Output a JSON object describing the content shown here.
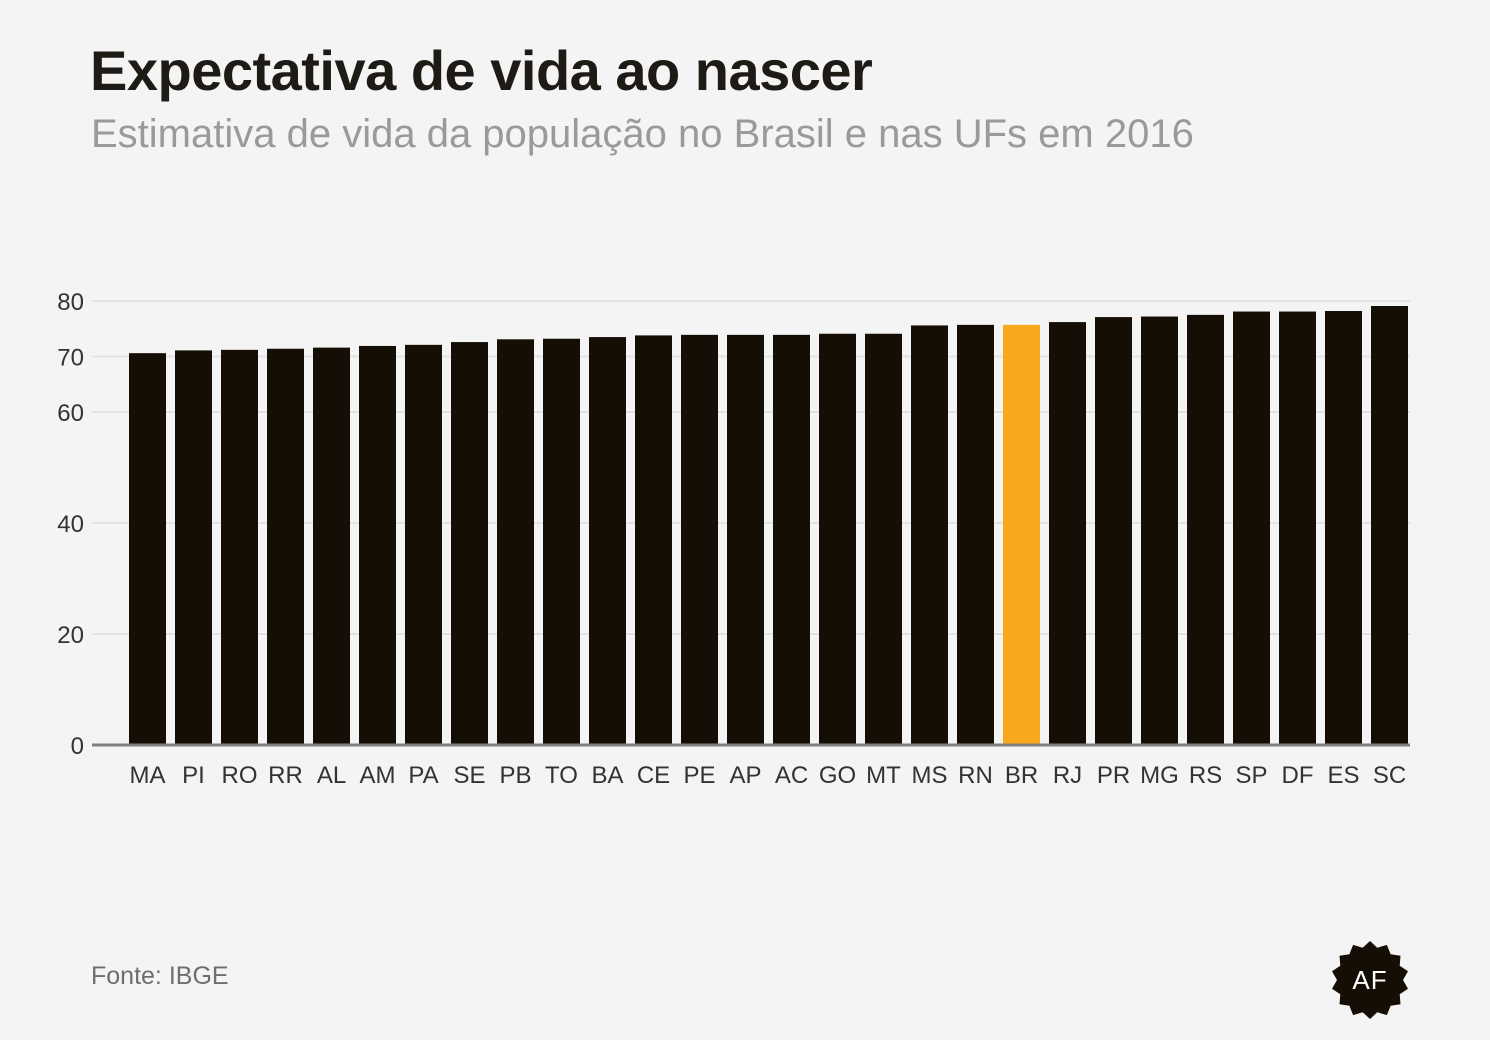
{
  "title": "Expectativa de vida ao nascer",
  "subtitle": "Estimativa de vida da população no Brasil e nas UFs em 2016",
  "source": "Fonte: IBGE",
  "logo_text": "AF",
  "colors": {
    "background": "#f4f4f4",
    "bar": "#150e04",
    "highlight": "#f7a81d",
    "grid": "#e2e2e2",
    "axis": "#808080",
    "tick_text": "#333333"
  },
  "chart_data": {
    "type": "bar",
    "categories": [
      "MA",
      "PI",
      "RO",
      "RR",
      "AL",
      "AM",
      "PA",
      "SE",
      "PB",
      "TO",
      "BA",
      "CE",
      "PE",
      "AP",
      "AC",
      "GO",
      "MT",
      "MS",
      "RN",
      "BR",
      "RJ",
      "PR",
      "MG",
      "RS",
      "SP",
      "DF",
      "ES",
      "SC"
    ],
    "values": [
      70.6,
      71.1,
      71.2,
      71.4,
      71.6,
      71.9,
      72.1,
      72.6,
      73.1,
      73.2,
      73.5,
      73.8,
      73.9,
      73.9,
      73.9,
      74.1,
      74.1,
      75.6,
      75.7,
      75.7,
      76.2,
      77.1,
      77.2,
      77.5,
      78.1,
      78.1,
      78.2,
      79.1
    ],
    "highlight": "BR",
    "yticks": [
      0,
      20,
      40,
      60,
      70,
      80
    ],
    "ylim": [
      0,
      80
    ],
    "grid": true,
    "legend": "none"
  }
}
